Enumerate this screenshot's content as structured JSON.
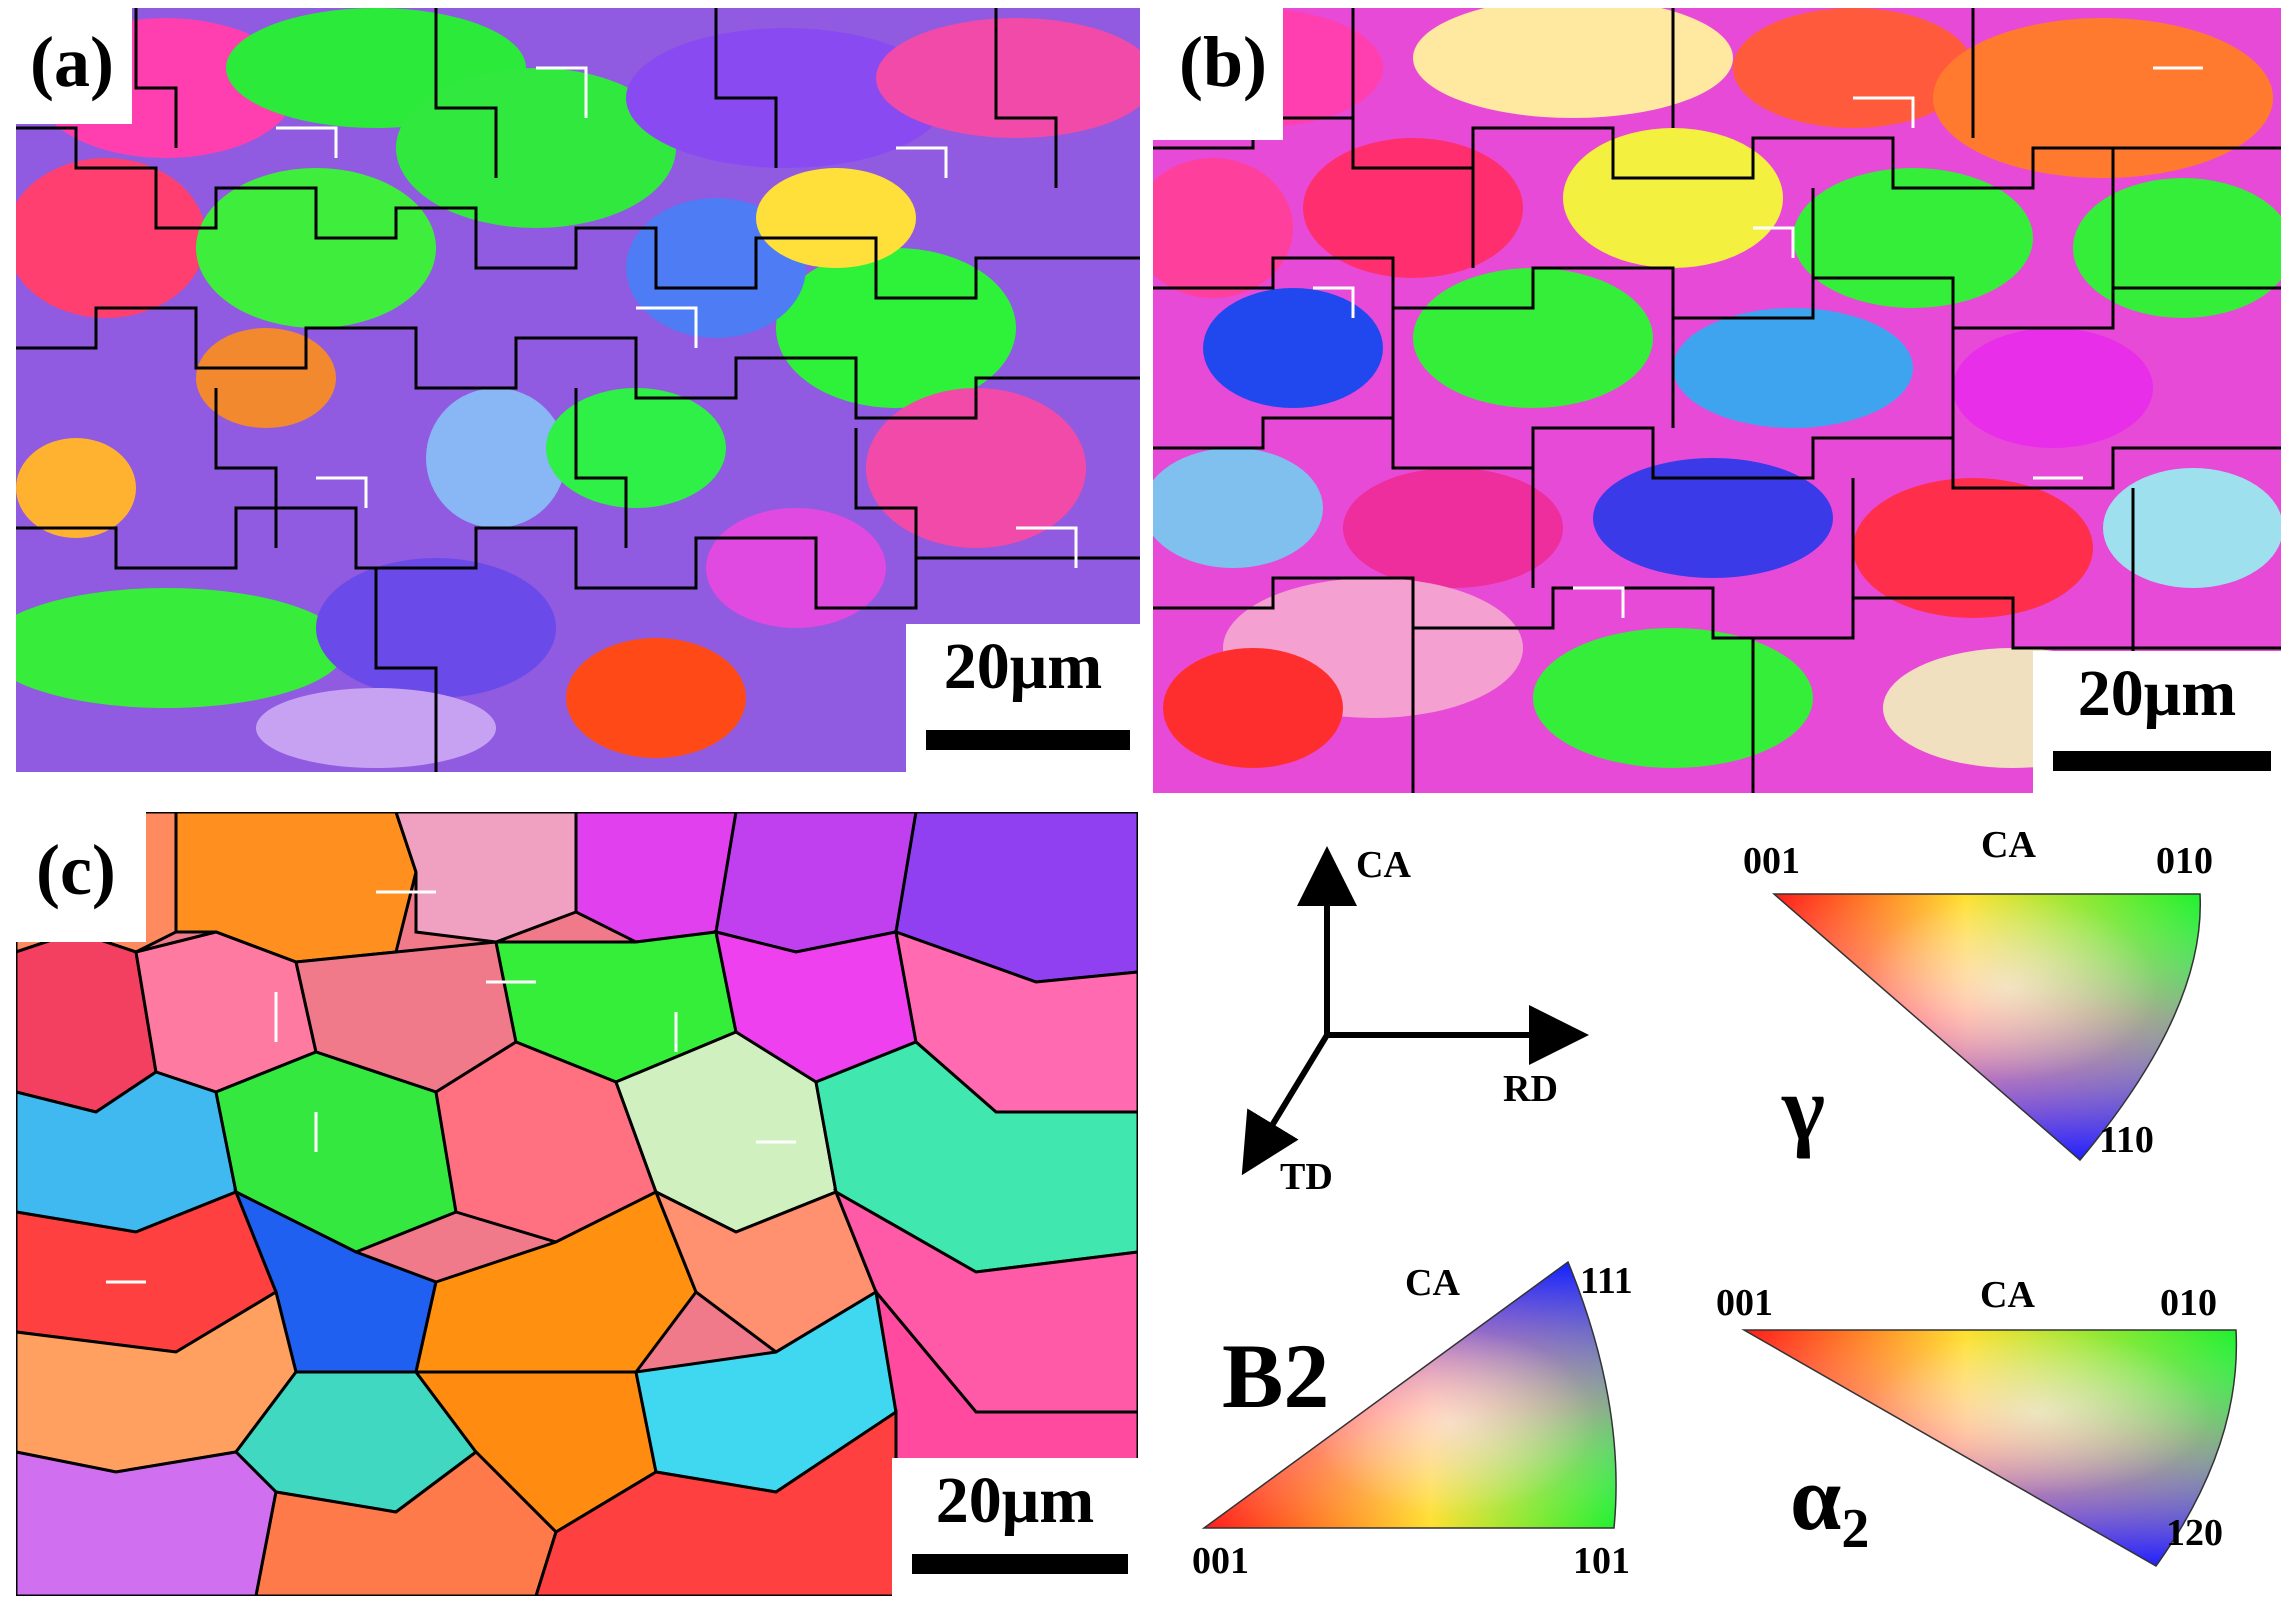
{
  "panels": [
    {
      "id": "a",
      "label": "(a)",
      "scale_bar": "20μm"
    },
    {
      "id": "b",
      "label": "(b)",
      "scale_bar": "20μm"
    },
    {
      "id": "c",
      "label": "(c)",
      "scale_bar": "20μm"
    }
  ],
  "coordinate_system": {
    "axes": [
      "CA",
      "RD",
      "TD"
    ]
  },
  "ipf_legends": [
    {
      "phase": "γ",
      "reference": "CA",
      "corners": [
        "001",
        "010",
        "110"
      ]
    },
    {
      "phase": "B2",
      "reference": "CA",
      "corners": [
        "001",
        "101",
        "111"
      ]
    },
    {
      "phase": "α2",
      "phase_base": "α",
      "phase_subscript": "2",
      "reference": "CA",
      "corners": [
        "001",
        "010",
        "120"
      ]
    }
  ],
  "colors": {
    "ipf_001": "#ff2020",
    "ipf_010": "#20ee30",
    "ipf_110": "#2030ee",
    "boundary_high_angle": "#000000",
    "boundary_low_angle": "#ffffff"
  }
}
